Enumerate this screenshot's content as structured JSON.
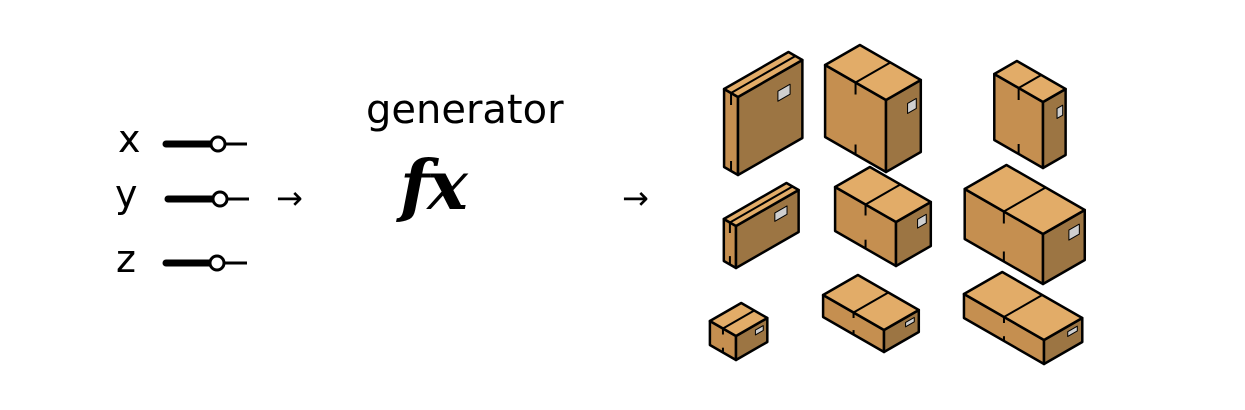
{
  "parameters": [
    {
      "label": "x",
      "slider_level": 0.72
    },
    {
      "label": "y",
      "slider_level": 0.72
    },
    {
      "label": "z",
      "slider_level": 0.68
    }
  ],
  "arrow_symbol": "→",
  "generator": {
    "title": "generator",
    "symbol": "fx"
  },
  "outputs": {
    "icon": "cardboard-box-icon",
    "count": 9,
    "colors": {
      "top": "#e2ac68",
      "front": "#9c7543",
      "side": "#c58f50",
      "outline": "#000000",
      "label": "#cfcfcf",
      "tape": "#000000"
    }
  }
}
